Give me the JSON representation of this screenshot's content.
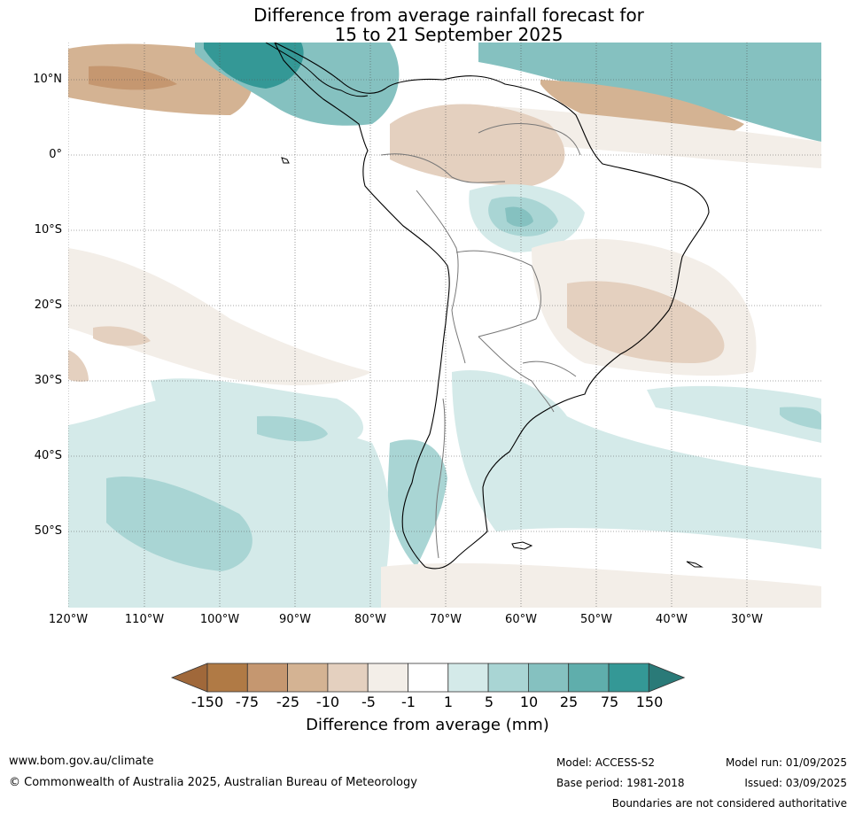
{
  "title": {
    "line1": "Difference from average rainfall forecast for",
    "line2": "15 to 21 September 2025"
  },
  "lat_labels": [
    "10°N",
    "0°",
    "10°S",
    "20°S",
    "30°S",
    "40°S",
    "50°S"
  ],
  "lon_labels": [
    "120°W",
    "110°W",
    "100°W",
    "90°W",
    "80°W",
    "70°W",
    "60°W",
    "50°W",
    "40°W",
    "30°W"
  ],
  "colorbar": {
    "ticks": [
      "-150",
      "-75",
      "-25",
      "-10",
      "-5",
      "-1",
      "1",
      "5",
      "10",
      "25",
      "75",
      "150"
    ],
    "colors": [
      "#a0683a",
      "#b07a45",
      "#c59770",
      "#d4b393",
      "#e4d0bf",
      "#f3eee8",
      "#ffffff",
      "#d4eae9",
      "#a9d5d4",
      "#85c1c0",
      "#5faeac",
      "#349896",
      "#2a7a78"
    ],
    "label": "Difference from average (mm)"
  },
  "footer": {
    "website": "www.bom.gov.au/climate",
    "copyright": "© Commonwealth of Australia 2025, Australian Bureau of Meteorology",
    "model": "Model: ACCESS-S2",
    "base_period": "Base period: 1981-2018",
    "model_run": "Model run: 01/09/2025",
    "issued": "Issued: 03/09/2025",
    "disclaimer": "Boundaries are not considered authoritative"
  }
}
